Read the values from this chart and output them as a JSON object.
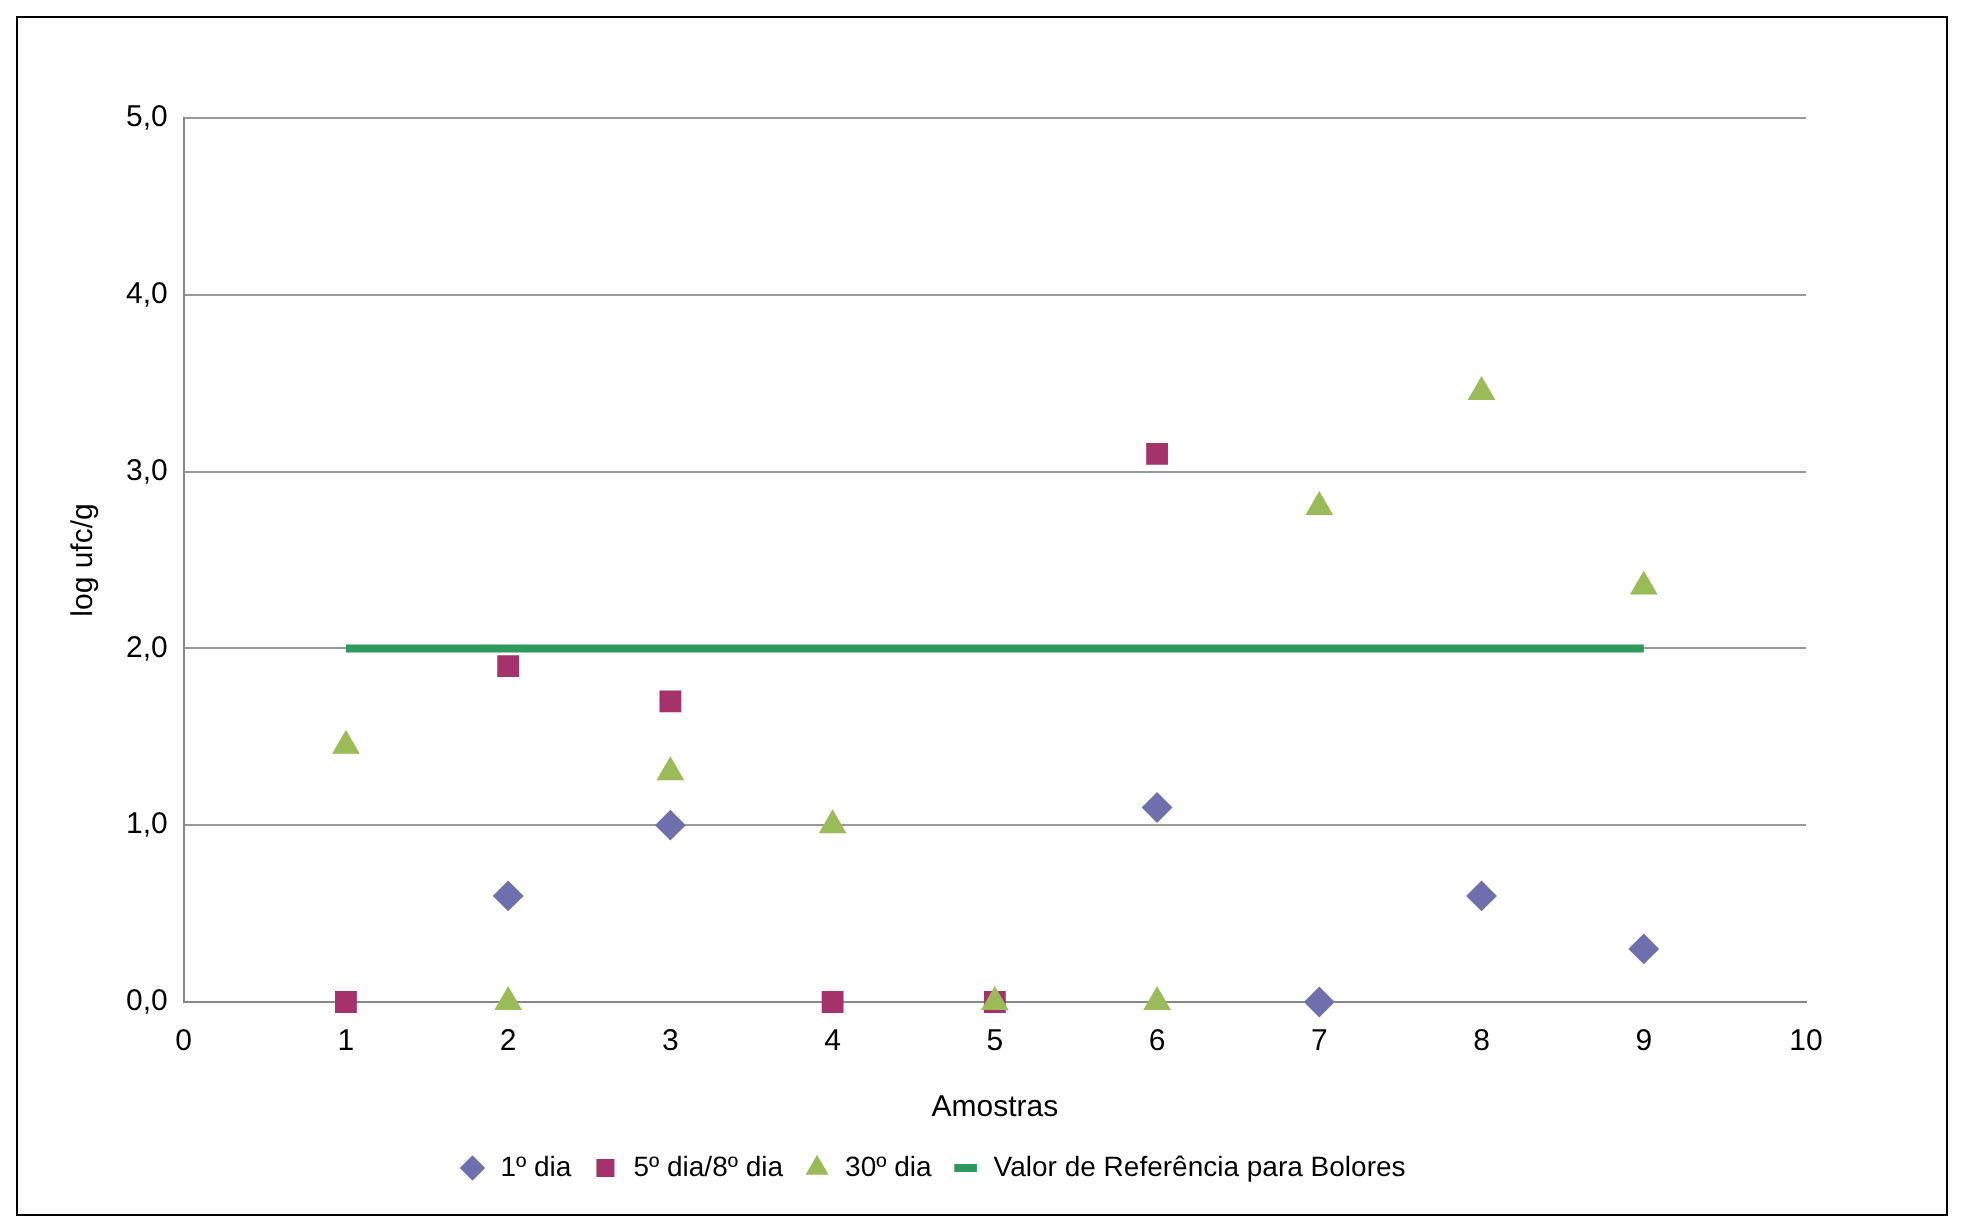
{
  "chart_data": {
    "type": "scatter",
    "xlabel": "Amostras",
    "ylabel": "log ufc/g",
    "x": [
      1,
      2,
      3,
      4,
      5,
      6,
      7,
      8,
      9
    ],
    "series": [
      {
        "name": "1º dia",
        "color": "#6f6fae",
        "marker": "diamond",
        "values": [
          null,
          0.6,
          1.0,
          null,
          null,
          1.1,
          0.0,
          0.6,
          0.3
        ]
      },
      {
        "name": "5º dia/8º dia",
        "color": "#a5326a",
        "marker": "square",
        "values": [
          0.0,
          1.9,
          1.7,
          0.0,
          0.0,
          3.1,
          null,
          null,
          null
        ]
      },
      {
        "name": "30º dia",
        "color": "#9bbb59",
        "marker": "triangle",
        "values": [
          1.45,
          0.0,
          1.3,
          1.0,
          0.0,
          0.0,
          2.8,
          3.45,
          2.35
        ]
      },
      {
        "name": "Valor de Referência para Bolores",
        "type": "line",
        "color": "#2e9a5e",
        "marker": "none",
        "x": [
          1,
          9
        ],
        "values": [
          2,
          2
        ]
      }
    ],
    "xlim": [
      0,
      10
    ],
    "xticks": [
      0,
      1,
      2,
      3,
      4,
      5,
      6,
      7,
      8,
      9,
      10
    ],
    "ylim": [
      0,
      5
    ],
    "yticks": [
      {
        "value": 0,
        "label": "0,0"
      },
      {
        "value": 1,
        "label": "1,0"
      },
      {
        "value": 2,
        "label": "2,0"
      },
      {
        "value": 3,
        "label": "3,0"
      },
      {
        "value": 4,
        "label": "4,0"
      },
      {
        "value": 5,
        "label": "5,0"
      }
    ],
    "grid": "y",
    "legend": "bottom"
  }
}
